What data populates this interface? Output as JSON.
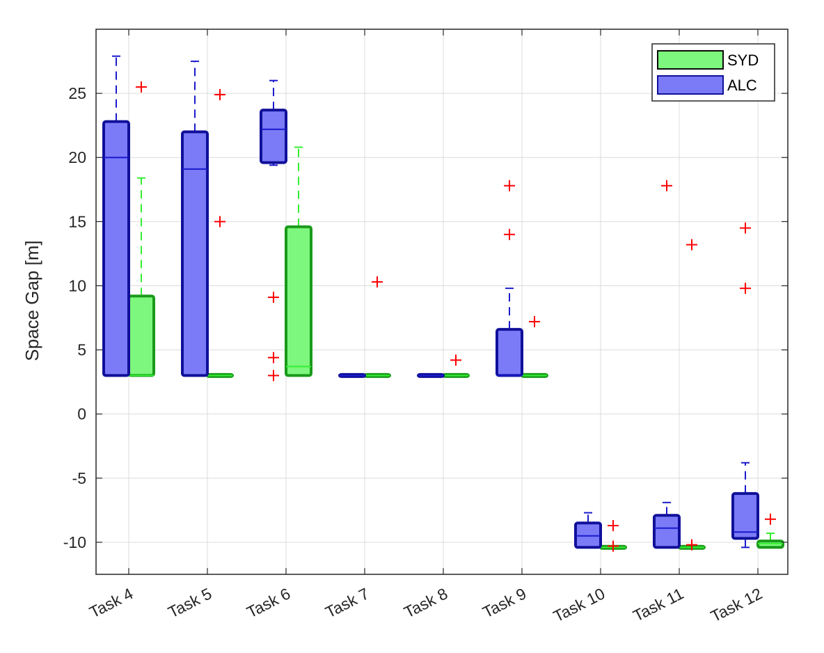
{
  "chart_data": {
    "type": "boxplot",
    "title": "",
    "xlabel": "",
    "ylabel": "Space Gap [m]",
    "ylim": [
      -12.5,
      30
    ],
    "yticks": [
      -10,
      -5,
      0,
      5,
      10,
      15,
      20,
      25
    ],
    "grid": true,
    "legend_position": "top-right",
    "categories": [
      "Task 4",
      "Task 5",
      "Task 6",
      "Task 7",
      "Task 8",
      "Task 9",
      "Task 10",
      "Task 11",
      "Task 12"
    ],
    "series": [
      {
        "name": "SYD",
        "color": "#33ee33",
        "fill": "#7df77d",
        "boxes": [
          {
            "whisker_low": 3,
            "q1": 3,
            "median": 3,
            "q3": 9.2,
            "whisker_high": 18.4,
            "outliers": [
              25.5
            ]
          },
          {
            "whisker_low": 3,
            "q1": 3,
            "median": 3,
            "q3": 3,
            "whisker_high": 3,
            "outliers": [
              24.9,
              15
            ]
          },
          {
            "whisker_low": 3,
            "q1": 3,
            "median": 3.7,
            "q3": 14.6,
            "whisker_high": 20.8,
            "outliers": []
          },
          {
            "whisker_low": 3,
            "q1": 3,
            "median": 3,
            "q3": 3,
            "whisker_high": 3,
            "outliers": [
              10.3
            ]
          },
          {
            "whisker_low": 3,
            "q1": 3,
            "median": 3,
            "q3": 3,
            "whisker_high": 3,
            "outliers": [
              4.2
            ]
          },
          {
            "whisker_low": 3,
            "q1": 3,
            "median": 3,
            "q3": 3,
            "whisker_high": 3,
            "outliers": [
              7.2
            ]
          },
          {
            "whisker_low": -10.4,
            "q1": -10.4,
            "median": -10.4,
            "q3": -10.4,
            "whisker_high": -10.4,
            "outliers": [
              -8.7,
              -10.3
            ]
          },
          {
            "whisker_low": -10.4,
            "q1": -10.4,
            "median": -10.4,
            "q3": -10.4,
            "whisker_high": -10.4,
            "outliers": [
              13.2,
              -10.2
            ]
          },
          {
            "whisker_low": -10.4,
            "q1": -10.4,
            "median": -10.1,
            "q3": -9.9,
            "whisker_high": -9.3,
            "outliers": [
              -8.2
            ]
          }
        ]
      },
      {
        "name": "ALC",
        "color": "#1a1acc",
        "fill": "#7b7bf7",
        "boxes": [
          {
            "whisker_low": 3,
            "q1": 3,
            "median": 20,
            "q3": 22.8,
            "whisker_high": 27.9,
            "outliers": []
          },
          {
            "whisker_low": 3,
            "q1": 3,
            "median": 19.1,
            "q3": 22,
            "whisker_high": 27.5,
            "outliers": []
          },
          {
            "whisker_low": 19.4,
            "q1": 19.6,
            "median": 22.2,
            "q3": 23.7,
            "whisker_high": 26,
            "outliers": [
              9.1,
              4.4,
              3
            ]
          },
          {
            "whisker_low": 3,
            "q1": 3,
            "median": 3,
            "q3": 3,
            "whisker_high": 3,
            "outliers": []
          },
          {
            "whisker_low": 3,
            "q1": 3,
            "median": 3,
            "q3": 3,
            "whisker_high": 3,
            "outliers": []
          },
          {
            "whisker_low": 3,
            "q1": 3,
            "median": 3,
            "q3": 6.6,
            "whisker_high": 9.8,
            "outliers": [
              17.8,
              14
            ]
          },
          {
            "whisker_low": -10.4,
            "q1": -10.4,
            "median": -9.5,
            "q3": -8.5,
            "whisker_high": -7.7,
            "outliers": []
          },
          {
            "whisker_low": -10.4,
            "q1": -10.4,
            "median": -8.9,
            "q3": -7.9,
            "whisker_high": -6.9,
            "outliers": [
              17.8
            ]
          },
          {
            "whisker_low": -10.4,
            "q1": -9.7,
            "median": -9.2,
            "q3": -6.2,
            "whisker_high": -3.8,
            "outliers": [
              14.5,
              9.8
            ]
          }
        ]
      }
    ],
    "outlier_color": "#ff0000",
    "axis_color": "#262626",
    "grid_color": "#dcdcdc"
  }
}
